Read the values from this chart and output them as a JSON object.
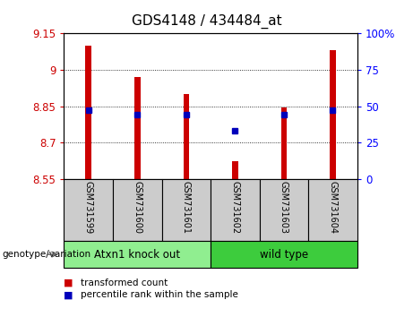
{
  "title": "GDS4148 / 434484_at",
  "samples": [
    "GSM731599",
    "GSM731600",
    "GSM731601",
    "GSM731602",
    "GSM731603",
    "GSM731604"
  ],
  "transformed_counts": [
    9.1,
    8.97,
    8.9,
    8.625,
    8.845,
    9.08
  ],
  "percentile_ranks": [
    47,
    44,
    44,
    33,
    44,
    47
  ],
  "ymin": 8.55,
  "ymax": 9.15,
  "yticks": [
    8.55,
    8.7,
    8.85,
    9.0,
    9.15
  ],
  "ytick_labels": [
    "8.55",
    "8.7",
    "8.85",
    "9",
    "9.15"
  ],
  "right_ytick_pcts": [
    0,
    25,
    50,
    75,
    100
  ],
  "right_ytick_labels": [
    "0",
    "25",
    "50",
    "75",
    "100%"
  ],
  "groups": [
    {
      "label": "Atxn1 knock out",
      "indices": [
        0,
        1,
        2
      ],
      "color": "#90ee90"
    },
    {
      "label": "wild type",
      "indices": [
        3,
        4,
        5
      ],
      "color": "#3dcc3d"
    }
  ],
  "bar_color": "#cc0000",
  "marker_color": "#0000bb",
  "bar_width": 0.12,
  "baseline": 8.55,
  "group_label": "genotype/variation",
  "legend_items": [
    {
      "label": "transformed count",
      "color": "#cc0000"
    },
    {
      "label": "percentile rank within the sample",
      "color": "#0000bb"
    }
  ],
  "bg_color_labels": "#cccccc",
  "title_fontsize": 11
}
